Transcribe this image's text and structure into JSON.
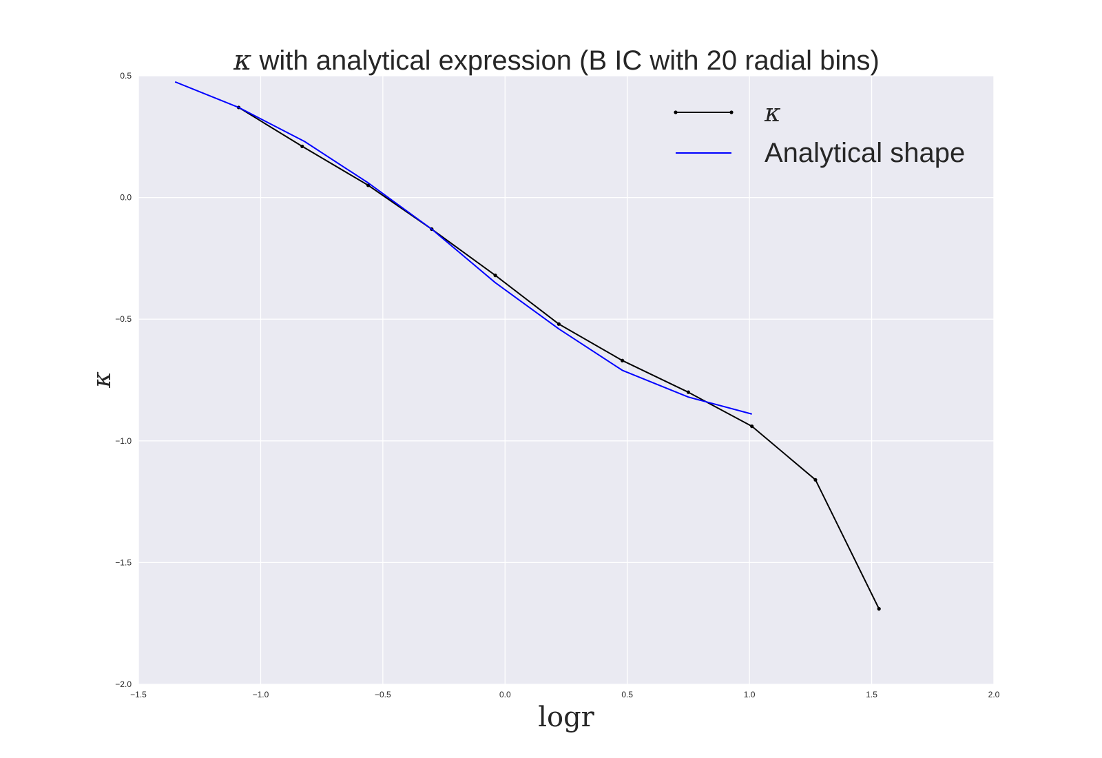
{
  "chart_data": {
    "type": "line",
    "title_symbol": "κ",
    "title_text": " with analytical expression (B IC with 20 radial bins)",
    "xlabel": "logr",
    "ylabel": "κ",
    "xlim": [
      -1.5,
      2.0
    ],
    "ylim": [
      -2.0,
      0.5
    ],
    "xticks": [
      -1.5,
      -1.0,
      -0.5,
      0.0,
      0.5,
      1.0,
      1.5,
      2.0
    ],
    "xtick_labels": [
      "−1.5",
      "−1.0",
      "−0.5",
      "0.0",
      "0.5",
      "1.0",
      "1.5",
      "2.0"
    ],
    "yticks": [
      0.5,
      0.0,
      -0.5,
      -1.0,
      -1.5,
      -2.0
    ],
    "ytick_labels": [
      "0.5",
      "0.0",
      "−0.5",
      "−1.0",
      "−1.5",
      "−2.0"
    ],
    "grid": true,
    "legend_position": "top-right",
    "background": "#EAEAF2",
    "series": [
      {
        "name": "κ",
        "color": "#000000",
        "marker": "dot",
        "x": [
          -1.09,
          -0.83,
          -0.56,
          -0.3,
          -0.04,
          0.22,
          0.48,
          0.75,
          1.01,
          1.27,
          1.53
        ],
        "y": [
          0.37,
          0.21,
          0.05,
          -0.13,
          -0.32,
          -0.52,
          -0.67,
          -0.8,
          -0.94,
          -1.16,
          -1.69
        ]
      },
      {
        "name": "Analytical shape",
        "color": "#0000FF",
        "marker": "none",
        "x": [
          -1.35,
          -1.09,
          -0.82,
          -0.56,
          -0.3,
          -0.04,
          0.22,
          0.48,
          0.75,
          1.01
        ],
        "y": [
          0.475,
          0.37,
          0.23,
          0.06,
          -0.13,
          -0.35,
          -0.54,
          -0.71,
          -0.82,
          -0.89
        ]
      }
    ]
  }
}
